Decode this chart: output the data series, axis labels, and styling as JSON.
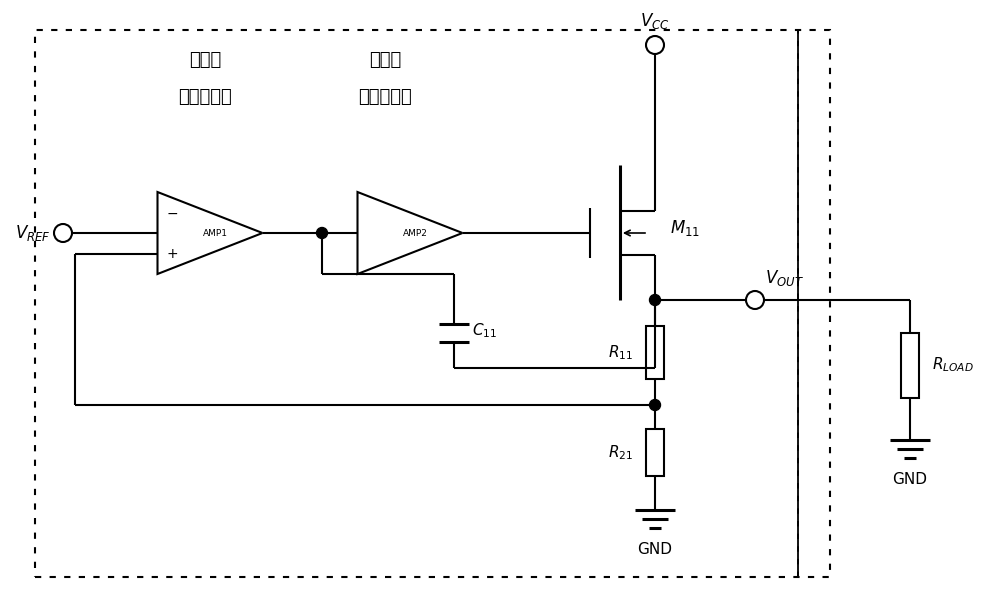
{
  "label_first_amp_line1": "第一级",
  "label_first_amp_line2": "误差放大器",
  "label_second_amp_line1": "第二级",
  "label_second_amp_line2": "误差放大器",
  "label_amp1": "AMP1",
  "label_amp2": "AMP2",
  "label_gnd1": "GND",
  "label_gnd2": "GND",
  "figsize": [
    10.0,
    6.15
  ],
  "dpi": 100
}
